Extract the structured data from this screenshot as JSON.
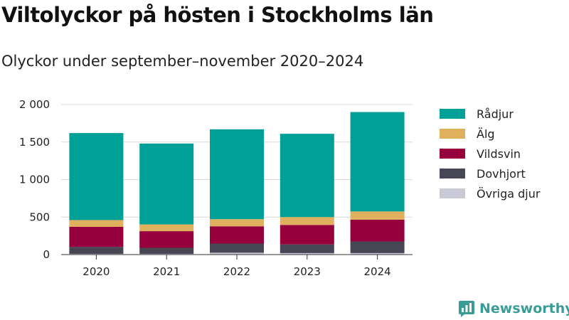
{
  "title": "Viltolyckor på hösten i Stockholms län",
  "subtitle": "Olyckor under september–november 2020–2024",
  "brand": {
    "name": "Newsworthy",
    "icon": "newsworthy-logo-icon",
    "color": "#3a9c96"
  },
  "chart_data": {
    "type": "bar",
    "stacked": true,
    "categories": [
      "2020",
      "2021",
      "2022",
      "2023",
      "2024"
    ],
    "series": [
      {
        "name": "Övriga djur",
        "color": "#c8c8d6",
        "values": [
          10,
          10,
          25,
          20,
          20
        ]
      },
      {
        "name": "Dovhjort",
        "color": "#464655",
        "values": [
          92,
          80,
          122,
          115,
          155
        ]
      },
      {
        "name": "Vildsvin",
        "color": "#96003c",
        "values": [
          268,
          222,
          230,
          260,
          290
        ]
      },
      {
        "name": "Älg",
        "color": "#dfb05d",
        "values": [
          90,
          90,
          95,
          105,
          110
        ]
      },
      {
        "name": "Rådjur",
        "color": "#00a096",
        "values": [
          1160,
          1078,
          1198,
          1110,
          1325
        ]
      }
    ],
    "legend_order": [
      "Rådjur",
      "Älg",
      "Vildsvin",
      "Dovhjort",
      "Övriga djur"
    ],
    "y_ticks": [
      0,
      500,
      1000,
      1500,
      2000
    ],
    "y_tick_labels": [
      "0",
      "500",
      "1 000",
      "1 500",
      "2 000"
    ],
    "ylim": [
      0,
      2000
    ],
    "grid": true,
    "legend_position": "right",
    "xlabel": "",
    "ylabel": ""
  }
}
